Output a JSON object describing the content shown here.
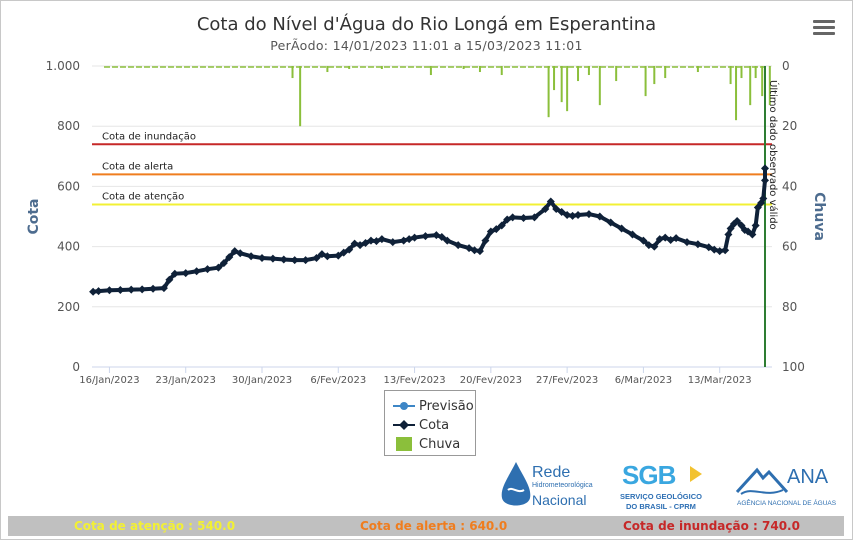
{
  "title": "Cota do Nível d'Água do Rio Longá em Esperantina",
  "subtitle": "PerÃodo: 14/01/2023 11:01 a 15/03/2023 11:01",
  "menu_icon": "hamburger-menu-icon",
  "legend": [
    {
      "label": "Previsão",
      "color": "#3d86c6",
      "symbol": "circle-line"
    },
    {
      "label": "Cota",
      "color": "#0f2138",
      "symbol": "diamond-line"
    },
    {
      "label": "Chuva",
      "color": "#8bbf3b",
      "symbol": "bar"
    }
  ],
  "logos": {
    "rede": {
      "line1": "Rede",
      "line2": "Hidrometeorológica",
      "line3": "Nacional"
    },
    "sgb": {
      "mark": "SGB",
      "line1": "SERVIÇO GEOLÓGICO",
      "line2": "DO BRASIL - CPRM"
    },
    "ana": {
      "mark": "ANA",
      "line1": "AGÊNCIA NACIONAL DE ÁGUAS"
    }
  },
  "footer": {
    "atencao": "Cota de atenção : 540.0",
    "alerta": "Cota de alerta : 640.0",
    "inundacao": "Cota de inundação : 740.0"
  },
  "chart_data": {
    "type": "line",
    "title": "Cota do Nível d'Água do Rio Longá em Esperantina",
    "subtitle": "PerÃodo: 14/01/2023 11:01 a 15/03/2023 11:01",
    "ylabel": "Cota",
    "y2label": "Chuva",
    "ylim": [
      0,
      1000
    ],
    "yticks": [
      0,
      200,
      400,
      600,
      "800",
      "1.000"
    ],
    "y2lim": [
      0,
      100
    ],
    "y2_reversed": true,
    "y2ticks": [
      0,
      20,
      40,
      60,
      80,
      100
    ],
    "xlim_day": [
      14.4,
      74.6
    ],
    "xticks": [
      {
        "day": 16,
        "label": "16/Jan/2023"
      },
      {
        "day": 23,
        "label": "23/Jan/2023"
      },
      {
        "day": 30,
        "label": "30/Jan/2023"
      },
      {
        "day": 37,
        "label": "6/Fev/2023"
      },
      {
        "day": 44,
        "label": "13/Fev/2023"
      },
      {
        "day": 51,
        "label": "20/Fev/2023"
      },
      {
        "day": 58,
        "label": "27/Fev/2023"
      },
      {
        "day": 65,
        "label": "6/Mar/2023"
      },
      {
        "day": 72,
        "label": "13/Mar/2023"
      }
    ],
    "grid": true,
    "legend_position": "bottom-center",
    "thresholds": [
      {
        "name": "Cota de inundação",
        "value": 740,
        "color": "#c62828"
      },
      {
        "name": "Cota de alerta",
        "value": 640,
        "color": "#ef7d1f"
      },
      {
        "name": "Cota de atenção",
        "value": 540,
        "color": "#f2f034"
      }
    ],
    "last_observation": {
      "label": "Último dado observado válido",
      "day": 74.3,
      "color": "#2e7d32"
    },
    "series": [
      {
        "name": "Cota",
        "color": "#0f2138",
        "points": [
          [
            14.5,
            250
          ],
          [
            15,
            252
          ],
          [
            16,
            255
          ],
          [
            17,
            256
          ],
          [
            18,
            257
          ],
          [
            19,
            258
          ],
          [
            20,
            260
          ],
          [
            21,
            262
          ],
          [
            21.5,
            290
          ],
          [
            22,
            310
          ],
          [
            23,
            312
          ],
          [
            24,
            318
          ],
          [
            25,
            325
          ],
          [
            26,
            330
          ],
          [
            26.5,
            345
          ],
          [
            27,
            365
          ],
          [
            27.5,
            385
          ],
          [
            28,
            378
          ],
          [
            29,
            368
          ],
          [
            30,
            362
          ],
          [
            31,
            360
          ],
          [
            32,
            357
          ],
          [
            33,
            355
          ],
          [
            34,
            355
          ],
          [
            35,
            362
          ],
          [
            35.5,
            375
          ],
          [
            36,
            368
          ],
          [
            37,
            370
          ],
          [
            37.5,
            380
          ],
          [
            38,
            390
          ],
          [
            38.5,
            410
          ],
          [
            39,
            405
          ],
          [
            39.5,
            412
          ],
          [
            40,
            420
          ],
          [
            40.5,
            418
          ],
          [
            41,
            425
          ],
          [
            42,
            415
          ],
          [
            43,
            420
          ],
          [
            43.5,
            425
          ],
          [
            44,
            430
          ],
          [
            45,
            435
          ],
          [
            46,
            438
          ],
          [
            46.5,
            432
          ],
          [
            47,
            420
          ],
          [
            48,
            405
          ],
          [
            49,
            395
          ],
          [
            49.5,
            388
          ],
          [
            50,
            385
          ],
          [
            50.5,
            420
          ],
          [
            51,
            450
          ],
          [
            51.5,
            458
          ],
          [
            52,
            470
          ],
          [
            52.5,
            490
          ],
          [
            53,
            497
          ],
          [
            54,
            495
          ],
          [
            55,
            497
          ],
          [
            56,
            525
          ],
          [
            56.5,
            550
          ],
          [
            57,
            525
          ],
          [
            57.5,
            515
          ],
          [
            58,
            505
          ],
          [
            58.5,
            502
          ],
          [
            59,
            505
          ],
          [
            60,
            508
          ],
          [
            61,
            500
          ],
          [
            62,
            480
          ],
          [
            63,
            460
          ],
          [
            64,
            440
          ],
          [
            65,
            420
          ],
          [
            65.5,
            405
          ],
          [
            66,
            400
          ],
          [
            66.5,
            425
          ],
          [
            67,
            430
          ],
          [
            67.5,
            422
          ],
          [
            68,
            428
          ],
          [
            69,
            415
          ],
          [
            70,
            408
          ],
          [
            71,
            398
          ],
          [
            71.5,
            390
          ],
          [
            72,
            385
          ],
          [
            72.5,
            388
          ],
          [
            72.8,
            440
          ],
          [
            73,
            460
          ],
          [
            73.3,
            475
          ],
          [
            73.6,
            485
          ],
          [
            74,
            470
          ],
          [
            74.3,
            455
          ],
          [
            74.6,
            450
          ],
          [
            75,
            440
          ],
          [
            75.3,
            470
          ],
          [
            75.5,
            530
          ],
          [
            75.8,
            545
          ],
          [
            76,
            560
          ],
          [
            76.3,
            620
          ],
          [
            76.6,
            660
          ]
        ]
      },
      {
        "name": "Chuva",
        "color": "#8bbf3b",
        "points": [
          [
            32.8,
            4
          ],
          [
            33.5,
            20
          ],
          [
            36,
            2
          ],
          [
            38,
            1
          ],
          [
            41,
            1
          ],
          [
            45.5,
            3
          ],
          [
            48.5,
            1
          ],
          [
            50,
            2
          ],
          [
            52,
            3
          ],
          [
            56.3,
            17
          ],
          [
            56.8,
            8
          ],
          [
            57.5,
            12
          ],
          [
            58,
            15
          ],
          [
            59,
            5
          ],
          [
            60,
            3
          ],
          [
            61,
            13
          ],
          [
            62.5,
            5
          ],
          [
            65.2,
            10
          ],
          [
            66,
            6
          ],
          [
            67,
            4
          ],
          [
            70,
            2
          ],
          [
            73,
            6
          ],
          [
            73.5,
            18
          ],
          [
            74,
            4
          ],
          [
            74.8,
            13
          ],
          [
            75.3,
            4
          ],
          [
            75.9,
            10
          ],
          [
            76.6,
            13
          ]
        ]
      }
    ]
  }
}
